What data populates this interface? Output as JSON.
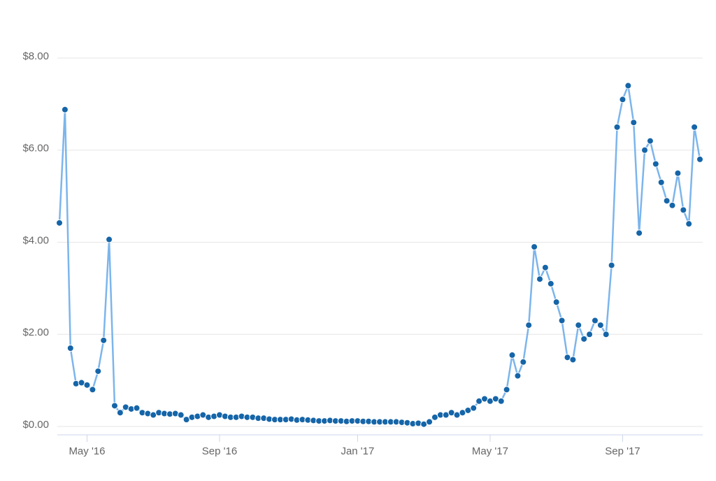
{
  "chart_data": {
    "type": "line",
    "categories": [
      null,
      null,
      null,
      null,
      null,
      "May '16",
      null,
      null,
      null,
      null,
      null,
      null,
      null,
      null,
      null,
      null,
      null,
      null,
      null,
      null,
      null,
      null,
      null,
      null,
      null,
      null,
      null,
      null,
      null,
      "Sep '16",
      null,
      null,
      null,
      null,
      null,
      null,
      null,
      null,
      null,
      null,
      null,
      null,
      null,
      null,
      null,
      null,
      null,
      null,
      null,
      null,
      null,
      null,
      null,
      null,
      "Jan '17",
      null,
      null,
      null,
      null,
      null,
      null,
      null,
      null,
      null,
      null,
      null,
      null,
      null,
      null,
      null,
      null,
      null,
      null,
      null,
      null,
      null,
      null,
      null,
      "May '17",
      null,
      null,
      null,
      null,
      null,
      null,
      null,
      null,
      null,
      null,
      null,
      null,
      null,
      null,
      null,
      null,
      null,
      null,
      null,
      null,
      null,
      null,
      null,
      "Sep '17",
      null,
      null,
      null,
      null,
      null,
      null,
      null,
      null,
      null,
      null,
      null,
      null,
      null,
      null
    ],
    "values": [
      4.42,
      6.88,
      1.7,
      0.93,
      0.95,
      0.9,
      0.8,
      1.2,
      1.87,
      4.06,
      0.45,
      0.3,
      0.42,
      0.38,
      0.4,
      0.3,
      0.28,
      0.25,
      0.3,
      0.28,
      0.27,
      0.28,
      0.25,
      0.15,
      0.2,
      0.22,
      0.25,
      0.2,
      0.22,
      0.25,
      0.22,
      0.2,
      0.2,
      0.22,
      0.2,
      0.2,
      0.18,
      0.18,
      0.16,
      0.15,
      0.15,
      0.15,
      0.16,
      0.14,
      0.15,
      0.14,
      0.13,
      0.12,
      0.12,
      0.13,
      0.12,
      0.12,
      0.11,
      0.12,
      0.12,
      0.11,
      0.11,
      0.1,
      0.1,
      0.1,
      0.1,
      0.1,
      0.09,
      0.08,
      0.06,
      0.07,
      0.05,
      0.1,
      0.2,
      0.25,
      0.25,
      0.3,
      0.25,
      0.3,
      0.35,
      0.4,
      0.55,
      0.6,
      0.55,
      0.6,
      0.55,
      0.8,
      1.55,
      1.1,
      1.4,
      2.2,
      3.9,
      3.2,
      3.45,
      3.1,
      2.7,
      2.3,
      1.5,
      1.45,
      2.2,
      1.9,
      2.0,
      2.3,
      2.2,
      2.0,
      3.5,
      6.5,
      7.1,
      7.4,
      6.6,
      4.2,
      6.0,
      6.2,
      5.7,
      5.3,
      4.9,
      4.8,
      5.5,
      4.7,
      4.4,
      6.5,
      5.8
    ],
    "color": "#7cb5ec",
    "marker_color": "#1565a8",
    "ylim": [
      0,
      8
    ],
    "yticks": [
      {
        "value": 0,
        "label": "$0.00"
      },
      {
        "value": 2,
        "label": "$2.00"
      },
      {
        "value": 4,
        "label": "$4.00"
      },
      {
        "value": 6,
        "label": "$6.00"
      },
      {
        "value": 8,
        "label": "$8.00"
      }
    ],
    "grid": true
  }
}
